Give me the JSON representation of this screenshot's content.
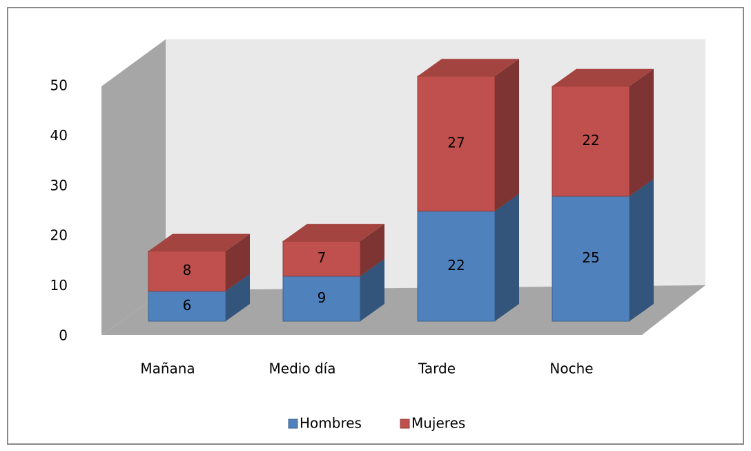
{
  "chart_data": {
    "type": "bar3d_stacked",
    "categories": [
      "Mañana",
      "Medio día",
      "Tarde",
      "Noche"
    ],
    "series": [
      {
        "name": "Hombres",
        "color": "#4f81bd",
        "values": [
          6,
          9,
          22,
          25
        ]
      },
      {
        "name": "Mujeres",
        "color": "#c0504d",
        "values": [
          8,
          7,
          27,
          22
        ]
      }
    ],
    "ylim": [
      0,
      50
    ],
    "yticks": [
      0,
      10,
      20,
      30,
      40,
      50
    ],
    "grid": false,
    "legend": "bottom"
  }
}
